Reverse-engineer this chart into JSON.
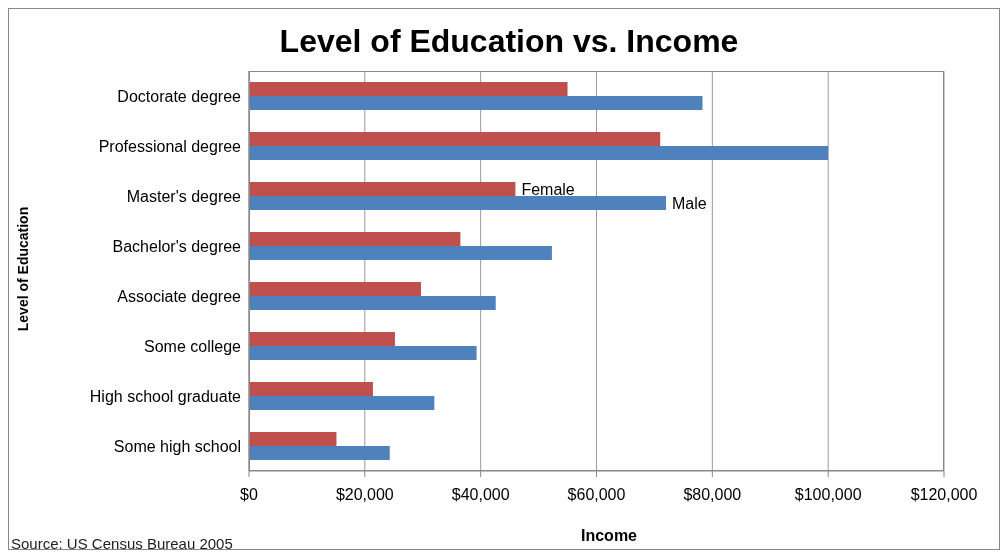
{
  "chart_data": {
    "type": "bar",
    "orientation": "horizontal",
    "title": "Level of Education vs. Income",
    "xlabel": "Income",
    "ylabel": "Level of Education",
    "categories": [
      "Doctorate degree",
      "Professional degree",
      "Master's degree",
      "Bachelor's degree",
      "Associate degree",
      "Some college",
      "High school graduate",
      "Some high school"
    ],
    "series": [
      {
        "name": "Female",
        "color": "#c0504d",
        "values": [
          55000,
          71000,
          46000,
          36500,
          29700,
          25200,
          21400,
          15100
        ]
      },
      {
        "name": "Male",
        "color": "#4f81bd",
        "values": [
          78300,
          100000,
          72000,
          52300,
          42600,
          39300,
          32000,
          24300
        ]
      }
    ],
    "xlim": [
      0,
      120000
    ],
    "xticks": [
      {
        "value": 0,
        "label": "$0"
      },
      {
        "value": 20000,
        "label": "$20,000"
      },
      {
        "value": 40000,
        "label": "$40,000"
      },
      {
        "value": 60000,
        "label": "$60,000"
      },
      {
        "value": 80000,
        "label": "$80,000"
      },
      {
        "value": 100000,
        "label": "$100,000"
      },
      {
        "value": 120000,
        "label": "$120,000"
      }
    ],
    "grid": "x",
    "legend": false,
    "annotations": [
      "Source: US Census Bureau 2005"
    ]
  }
}
